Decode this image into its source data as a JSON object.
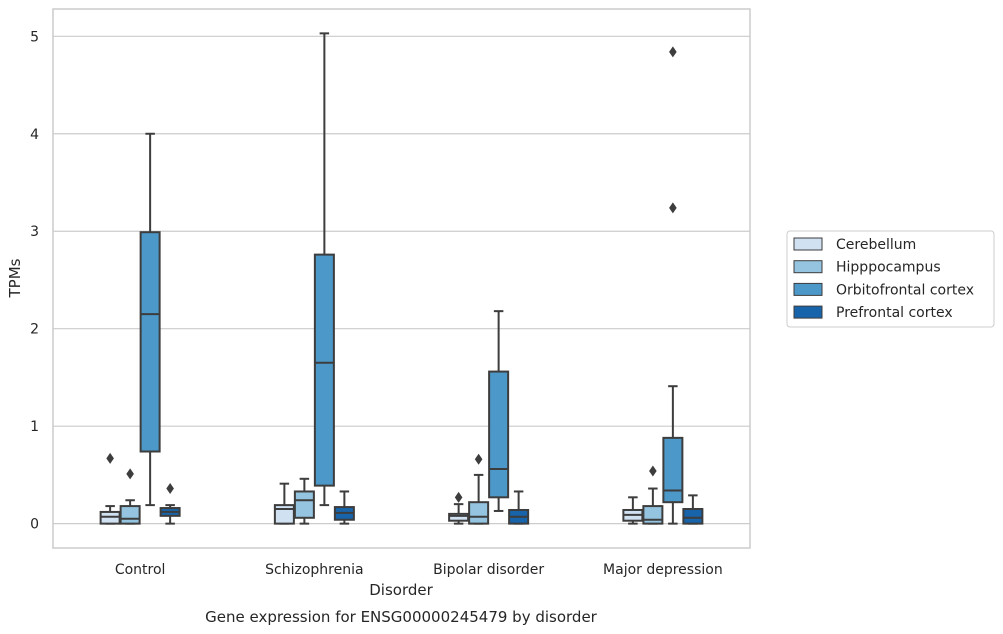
{
  "chart_data": {
    "type": "box",
    "xlabel": "Disorder",
    "ylabel": "TPMs",
    "caption": "Gene expression for ENSG00000245479 by disorder",
    "categories": [
      "Control",
      "Schizophrenia",
      "Bipolar disorder",
      "Major depression"
    ],
    "ylim": [
      -0.25,
      5.28
    ],
    "yticks": [
      0,
      1,
      2,
      3,
      4,
      5
    ],
    "grid": true,
    "legend_position": "right",
    "series": [
      {
        "name": "Cerebellum",
        "color": "#d0e1f2",
        "boxes": [
          {
            "whisker_low": 0.0,
            "q1": 0.0,
            "median": 0.07,
            "q3": 0.12,
            "whisker_high": 0.18,
            "outliers": [
              0.67
            ]
          },
          {
            "whisker_low": 0.0,
            "q1": 0.0,
            "median": 0.15,
            "q3": 0.19,
            "whisker_high": 0.41,
            "outliers": []
          },
          {
            "whisker_low": 0.0,
            "q1": 0.03,
            "median": 0.08,
            "q3": 0.1,
            "whisker_high": 0.2,
            "outliers": [
              0.27
            ]
          },
          {
            "whisker_low": 0.0,
            "q1": 0.03,
            "median": 0.09,
            "q3": 0.14,
            "whisker_high": 0.27,
            "outliers": []
          }
        ]
      },
      {
        "name": "Hipppocampus",
        "color": "#94c4df",
        "boxes": [
          {
            "whisker_low": 0.0,
            "q1": 0.0,
            "median": 0.05,
            "q3": 0.18,
            "whisker_high": 0.24,
            "outliers": [
              0.51
            ]
          },
          {
            "whisker_low": 0.0,
            "q1": 0.06,
            "median": 0.24,
            "q3": 0.33,
            "whisker_high": 0.46,
            "outliers": []
          },
          {
            "whisker_low": 0.0,
            "q1": 0.0,
            "median": 0.07,
            "q3": 0.22,
            "whisker_high": 0.5,
            "outliers": [
              0.66
            ]
          },
          {
            "whisker_low": 0.0,
            "q1": 0.0,
            "median": 0.04,
            "q3": 0.18,
            "whisker_high": 0.36,
            "outliers": [
              0.54
            ]
          }
        ]
      },
      {
        "name": "Orbitofrontal cortex",
        "color": "#4b98c9",
        "boxes": [
          {
            "whisker_low": 0.19,
            "q1": 0.74,
            "median": 2.15,
            "q3": 2.99,
            "whisker_high": 4.0,
            "outliers": []
          },
          {
            "whisker_low": 0.19,
            "q1": 0.39,
            "median": 1.65,
            "q3": 2.76,
            "whisker_high": 5.03,
            "outliers": []
          },
          {
            "whisker_low": 0.13,
            "q1": 0.27,
            "median": 0.56,
            "q3": 1.56,
            "whisker_high": 2.18,
            "outliers": []
          },
          {
            "whisker_low": 0.0,
            "q1": 0.22,
            "median": 0.34,
            "q3": 0.88,
            "whisker_high": 1.41,
            "outliers": [
              3.24,
              4.84
            ]
          }
        ]
      },
      {
        "name": "Prefrontal cortex",
        "color": "#1764ab",
        "boxes": [
          {
            "whisker_low": 0.0,
            "q1": 0.08,
            "median": 0.12,
            "q3": 0.16,
            "whisker_high": 0.19,
            "outliers": [
              0.36
            ]
          },
          {
            "whisker_low": 0.0,
            "q1": 0.04,
            "median": 0.11,
            "q3": 0.17,
            "whisker_high": 0.33,
            "outliers": []
          },
          {
            "whisker_low": 0.0,
            "q1": 0.0,
            "median": 0.07,
            "q3": 0.14,
            "whisker_high": 0.33,
            "outliers": []
          },
          {
            "whisker_low": 0.0,
            "q1": 0.0,
            "median": 0.06,
            "q3": 0.15,
            "whisker_high": 0.29,
            "outliers": []
          }
        ]
      }
    ]
  }
}
